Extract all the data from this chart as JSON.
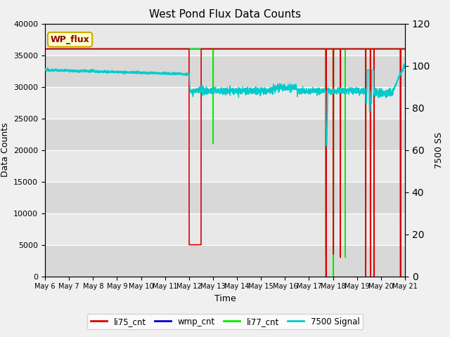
{
  "title": "West Pond Flux Data Counts",
  "xlabel": "Time",
  "ylabel_left": "Data Counts",
  "ylabel_right": "7500 SS",
  "ylim_left": [
    0,
    40000
  ],
  "ylim_right": [
    0,
    120
  ],
  "xtick_labels": [
    "May 6",
    "May 7",
    "May 8",
    "May 9",
    "May 10",
    "May 11",
    "May 12",
    "May 13",
    "May 14",
    "May 15",
    "May 16",
    "May 17",
    "May 18",
    "May 19",
    "May 20",
    "May 21"
  ],
  "bg_color": "#e8e8e8",
  "bg_color2": "#d4d4d4",
  "legend_label": "WP_flux",
  "series_colors": {
    "li75_cnt": "#dd0000",
    "wmp_cnt": "#0000cc",
    "li77_cnt": "#00ee00",
    "7500 Signal": "#00cccc"
  },
  "figsize": [
    6.4,
    4.8
  ],
  "dpi": 100
}
